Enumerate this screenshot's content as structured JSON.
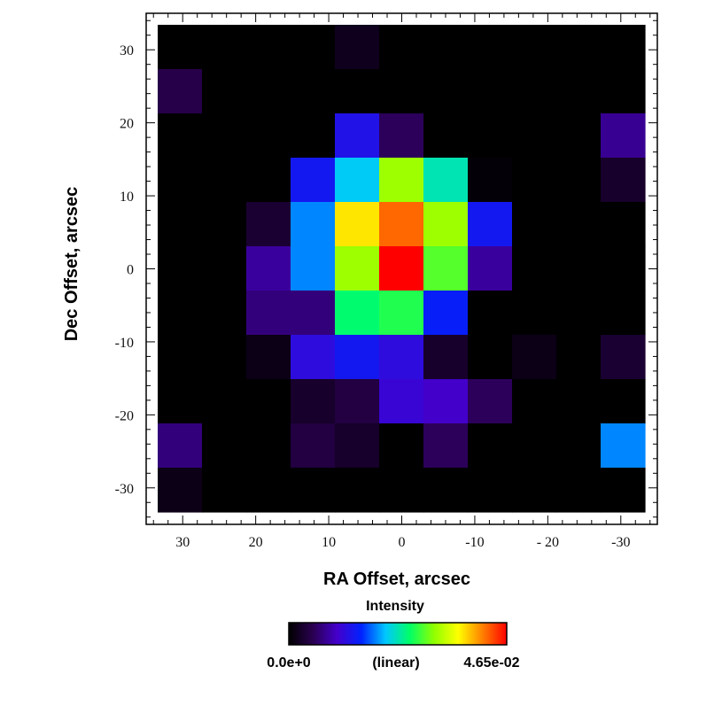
{
  "chart_data": {
    "type": "heatmap",
    "xlabel": "RA Offset, arcsec",
    "ylabel": "Dec Offset, arcsec",
    "x_ticks": [
      30,
      20,
      10,
      0,
      -10,
      -20,
      -30
    ],
    "x_tick_labels": [
      "30",
      "20",
      "10",
      "0",
      "-10",
      "- 20",
      "-30"
    ],
    "y_ticks": [
      30,
      20,
      10,
      0,
      -10,
      -20,
      -30
    ],
    "y_tick_labels": [
      "30",
      "20",
      "10",
      "0",
      "-10",
      "-20",
      "-30"
    ],
    "xlim": [
      35,
      -35
    ],
    "ylim": [
      -35,
      35
    ],
    "cell_size_arcsec": 6,
    "grid_x_centers": [
      30,
      24,
      18,
      12,
      6,
      0,
      -6,
      -12,
      -18,
      -24,
      -30
    ],
    "grid_y_centers": [
      30,
      24,
      18,
      12,
      6,
      0,
      -6,
      -12,
      -18,
      -24,
      -30
    ],
    "values_normalized": [
      [
        0,
        0,
        0,
        0,
        0.04,
        0,
        0,
        0,
        0,
        0,
        0
      ],
      [
        0.1,
        0,
        0,
        0,
        0,
        0,
        0,
        0,
        0,
        0,
        0
      ],
      [
        0,
        0,
        0,
        0,
        0.28,
        0.12,
        0,
        0,
        0,
        0,
        0.17
      ],
      [
        0,
        0,
        0,
        0.3,
        0.45,
        0.68,
        0.5,
        0.01,
        0,
        0,
        0.06
      ],
      [
        0,
        0,
        0.07,
        0.4,
        0.8,
        0.91,
        0.68,
        0.3,
        0,
        0,
        0
      ],
      [
        0,
        0,
        0.18,
        0.4,
        0.68,
        1.0,
        0.62,
        0.18,
        0,
        0,
        0
      ],
      [
        0,
        0,
        0.15,
        0.15,
        0.55,
        0.58,
        0.32,
        0,
        0,
        0,
        0
      ],
      [
        0,
        0,
        0.03,
        0.26,
        0.3,
        0.26,
        0.06,
        0,
        0.03,
        0,
        0.07
      ],
      [
        0,
        0,
        0,
        0.06,
        0.09,
        0.24,
        0.22,
        0.12,
        0,
        0,
        0
      ],
      [
        0.15,
        0,
        0,
        0.09,
        0.06,
        0,
        0.12,
        0,
        0,
        0,
        0.4
      ],
      [
        0.03,
        0,
        0,
        0,
        0,
        0,
        0,
        0,
        0,
        0,
        0
      ]
    ],
    "colorbar": {
      "title": "Intensity",
      "min_label": "0.0e+0",
      "scale_label": "(linear)",
      "max_label": "4.65e-02",
      "min": 0,
      "max": 0.0465,
      "stops": [
        "#000000",
        "#2a0050",
        "#4400cc",
        "#0022ff",
        "#00c8ff",
        "#00ff66",
        "#90ff00",
        "#ffff00",
        "#ff8000",
        "#ff0000"
      ]
    }
  }
}
